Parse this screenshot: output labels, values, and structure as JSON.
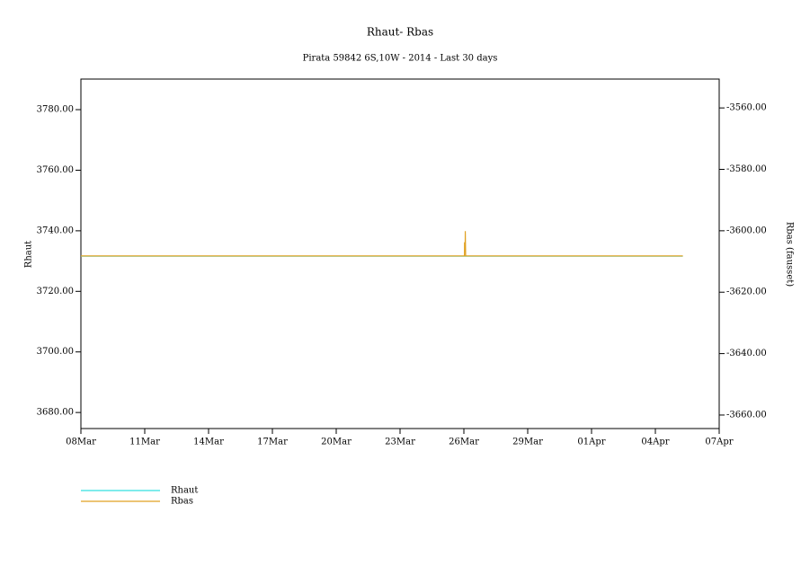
{
  "chart_data": {
    "type": "line",
    "title": "Rhaut-  Rbas",
    "subtitle": "Pirata 59842 6S,10W - 2014 - Last 30 days",
    "ylabel": "Rhaut",
    "y2label": "Rbas (fausset)",
    "xlim": [
      "2014-03-08T00:00",
      "2014-04-07T00:00"
    ],
    "xticks": [
      {
        "value": "2014-03-08T00:00",
        "label": "08Mar"
      },
      {
        "value": "2014-03-11T00:00",
        "label": "11Mar"
      },
      {
        "value": "2014-03-14T00:00",
        "label": "14Mar"
      },
      {
        "value": "2014-03-17T00:00",
        "label": "17Mar"
      },
      {
        "value": "2014-03-20T00:00",
        "label": "20Mar"
      },
      {
        "value": "2014-03-23T00:00",
        "label": "23Mar"
      },
      {
        "value": "2014-03-26T00:00",
        "label": "26Mar"
      },
      {
        "value": "2014-03-29T00:00",
        "label": "29Mar"
      },
      {
        "value": "2014-04-01T00:00",
        "label": "01Apr"
      },
      {
        "value": "2014-04-04T00:00",
        "label": "04Apr"
      },
      {
        "value": "2014-04-07T00:00",
        "label": "07Apr"
      }
    ],
    "ylim": [
      3674.7,
      3790.1
    ],
    "yticks": [
      {
        "value": 3680,
        "label": "3680.00"
      },
      {
        "value": 3700,
        "label": "3700.00"
      },
      {
        "value": 3720,
        "label": "3720.00"
      },
      {
        "value": 3740,
        "label": "3740.00"
      },
      {
        "value": 3760,
        "label": "3760.00"
      },
      {
        "value": 3780,
        "label": "3780.00"
      }
    ],
    "y2lim": [
      -3664.4,
      -3550.6
    ],
    "y2ticks": [
      {
        "value": -3660,
        "label": "-3660.00"
      },
      {
        "value": -3640,
        "label": "-3640.00"
      },
      {
        "value": -3620,
        "label": "-3620.00"
      },
      {
        "value": -3600,
        "label": "-3600.00"
      },
      {
        "value": -3580,
        "label": "-3580.00"
      },
      {
        "value": -3560,
        "label": "-3560.00"
      }
    ],
    "series": [
      {
        "name": "Rhaut",
        "color": "#33e0e0",
        "x": [
          "2014-03-08T00:00",
          "2014-04-05T07:00"
        ],
        "values": [
          3731.6,
          3731.6
        ]
      },
      {
        "name": "Rbas",
        "color": "#e0a020",
        "axis": "y2",
        "x": [
          "2014-03-08T00:00",
          "2014-03-26T00:40",
          "2014-03-26T00:45",
          "2014-03-26T01:30",
          "2014-03-26T01:35",
          "2014-03-26T02:00",
          "2014-04-05T07:00"
        ],
        "values": [
          -3608.2,
          -3608.2,
          -3603.9,
          -3603.9,
          -3600.1,
          -3608.2,
          -3608.2
        ]
      }
    ]
  }
}
